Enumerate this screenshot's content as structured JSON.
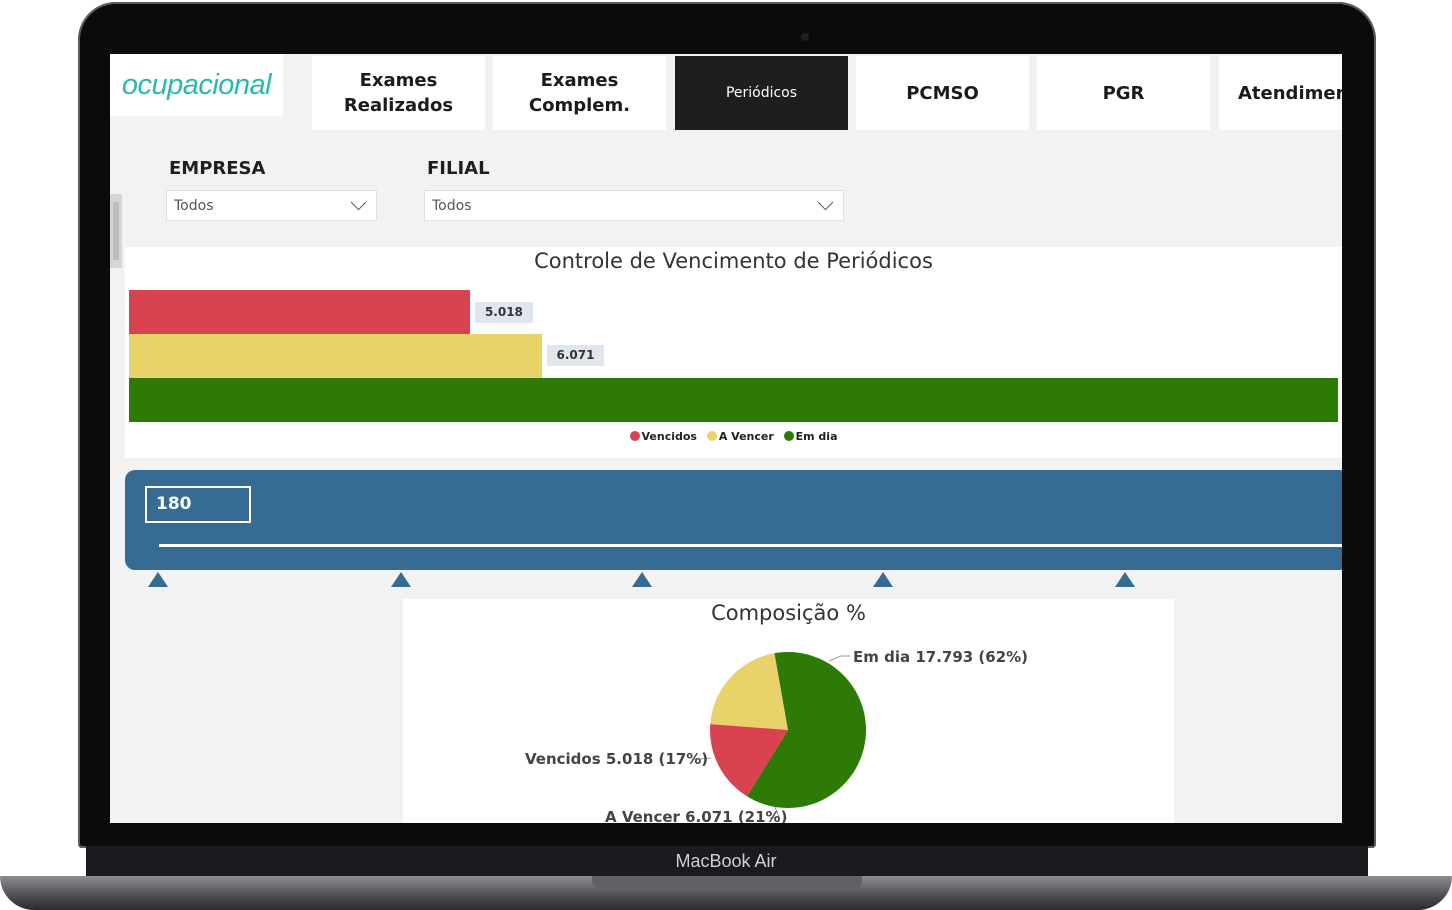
{
  "device": {
    "brand": "MacBook Air"
  },
  "app": {
    "logo": "ocupacional"
  },
  "tabs": [
    {
      "label": "Exames\nRealizados",
      "active": false
    },
    {
      "label": "Exames\nComplem.",
      "active": false
    },
    {
      "label": "Periódicos",
      "active": true
    },
    {
      "label": "PCMSO",
      "active": false
    },
    {
      "label": "PGR",
      "active": false
    },
    {
      "label": "Atendimen",
      "active": false
    }
  ],
  "filters": {
    "empresa": {
      "label": "EMPRESA",
      "value": "Todos"
    },
    "filial": {
      "label": "FILIAL",
      "value": "Todos"
    }
  },
  "colors": {
    "vencidos": "#d9434f",
    "a_vencer": "#e9d26a",
    "em_dia": "#2e7a07",
    "accent": "#366b94"
  },
  "bar_chart": {
    "title": "Controle de Vencimento de Periódicos",
    "value_labels": [
      "5.018",
      "6.071"
    ],
    "legend": [
      "Vencidos",
      "A Vencer",
      "Em dia"
    ]
  },
  "slider": {
    "value": "180"
  },
  "pie_chart": {
    "title": "Composição %",
    "labels": {
      "em_dia": "Em dia 17.793 (62%)",
      "vencidos": "Vencidos 5.018 (17%)",
      "a_vencer": "A Vencer 6.071 (21%)"
    }
  },
  "chart_data": [
    {
      "type": "bar",
      "orientation": "horizontal",
      "title": "Controle de Vencimento de Periódicos",
      "categories": [
        "Vencidos",
        "A Vencer",
        "Em dia"
      ],
      "values": [
        5018,
        6071,
        17793
      ],
      "legend": "bottom-center"
    },
    {
      "type": "pie",
      "title": "Composição %",
      "categories": [
        "Em dia",
        "Vencidos",
        "A Vencer"
      ],
      "values": [
        17793,
        5018,
        6071
      ],
      "percent": [
        62,
        17,
        21
      ]
    }
  ]
}
